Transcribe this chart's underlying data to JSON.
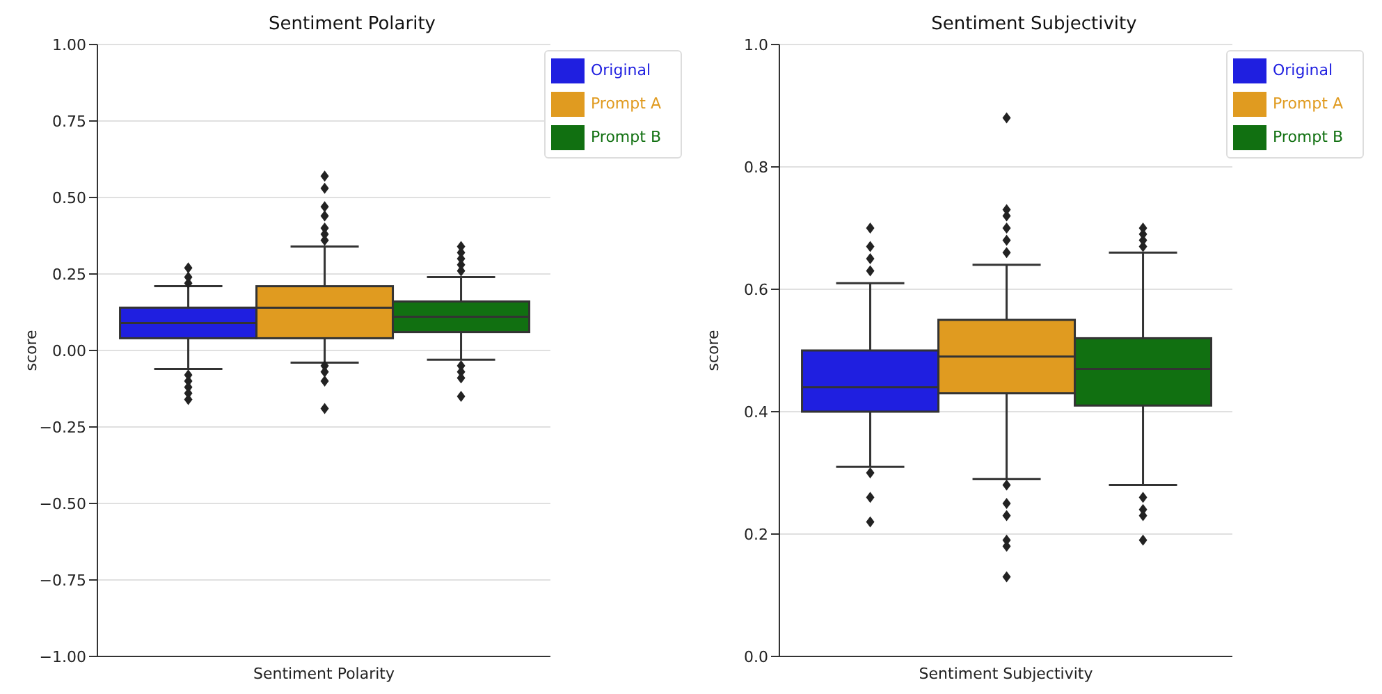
{
  "chart_data": [
    {
      "type": "box",
      "title": "Sentiment Polarity",
      "ylabel": "score",
      "categories": [
        "Sentiment Polarity"
      ],
      "ylim": [
        -1,
        1
      ],
      "yticks": [
        {
          "value": -1,
          "label": "−1.00"
        },
        {
          "value": -0.75,
          "label": "−0.75"
        },
        {
          "value": -0.5,
          "label": "−0.50"
        },
        {
          "value": -0.25,
          "label": "−0.25"
        },
        {
          "value": 0,
          "label": "0.00"
        },
        {
          "value": 0.25,
          "label": "0.25"
        },
        {
          "value": 0.5,
          "label": "0.50"
        },
        {
          "value": 0.75,
          "label": "0.75"
        },
        {
          "value": 1,
          "label": "1.00"
        }
      ],
      "grid": "y",
      "legend": "top right",
      "series": [
        {
          "name": "Original",
          "color": "#1f1fe0",
          "boxes": [
            {
              "low": -0.06,
              "q1": 0.04,
              "median": 0.09,
              "q3": 0.14,
              "high": 0.21,
              "outliers": [
                0.22,
                0.24,
                0.27,
                -0.08,
                -0.1,
                -0.12,
                -0.14,
                -0.16
              ]
            }
          ]
        },
        {
          "name": "Prompt A",
          "color": "#e09b20",
          "boxes": [
            {
              "low": -0.04,
              "q1": 0.04,
              "median": 0.14,
              "q3": 0.21,
              "high": 0.34,
              "outliers": [
                0.36,
                0.38,
                0.4,
                0.44,
                0.47,
                0.53,
                0.57,
                -0.05,
                -0.07,
                -0.1,
                -0.19
              ]
            }
          ]
        },
        {
          "name": "Prompt B",
          "color": "#117011",
          "boxes": [
            {
              "low": -0.03,
              "q1": 0.06,
              "median": 0.11,
              "q3": 0.16,
              "high": 0.24,
              "outliers": [
                0.26,
                0.28,
                0.3,
                0.32,
                0.34,
                -0.05,
                -0.07,
                -0.09,
                -0.15
              ]
            }
          ]
        }
      ]
    },
    {
      "type": "box",
      "title": "Sentiment Subjectivity",
      "ylabel": "score",
      "categories": [
        "Sentiment Subjectivity"
      ],
      "ylim": [
        0,
        1
      ],
      "yticks": [
        {
          "value": 0,
          "label": "0.0"
        },
        {
          "value": 0.2,
          "label": "0.2"
        },
        {
          "value": 0.4,
          "label": "0.4"
        },
        {
          "value": 0.6,
          "label": "0.6"
        },
        {
          "value": 0.8,
          "label": "0.8"
        },
        {
          "value": 1,
          "label": "1.0"
        }
      ],
      "grid": "y",
      "legend": "top right",
      "series": [
        {
          "name": "Original",
          "color": "#1f1fe0",
          "boxes": [
            {
              "low": 0.31,
              "q1": 0.4,
              "median": 0.44,
              "q3": 0.5,
              "high": 0.61,
              "outliers": [
                0.63,
                0.65,
                0.67,
                0.7,
                0.3,
                0.26,
                0.22
              ]
            }
          ]
        },
        {
          "name": "Prompt A",
          "color": "#e09b20",
          "boxes": [
            {
              "low": 0.29,
              "q1": 0.43,
              "median": 0.49,
              "q3": 0.55,
              "high": 0.64,
              "outliers": [
                0.66,
                0.68,
                0.7,
                0.72,
                0.73,
                0.88,
                0.28,
                0.25,
                0.23,
                0.19,
                0.18,
                0.13
              ]
            }
          ]
        },
        {
          "name": "Prompt B",
          "color": "#117011",
          "boxes": [
            {
              "low": 0.28,
              "q1": 0.41,
              "median": 0.47,
              "q3": 0.52,
              "high": 0.66,
              "outliers": [
                0.67,
                0.68,
                0.69,
                0.7,
                0.26,
                0.24,
                0.23,
                0.19
              ]
            }
          ]
        }
      ]
    }
  ]
}
